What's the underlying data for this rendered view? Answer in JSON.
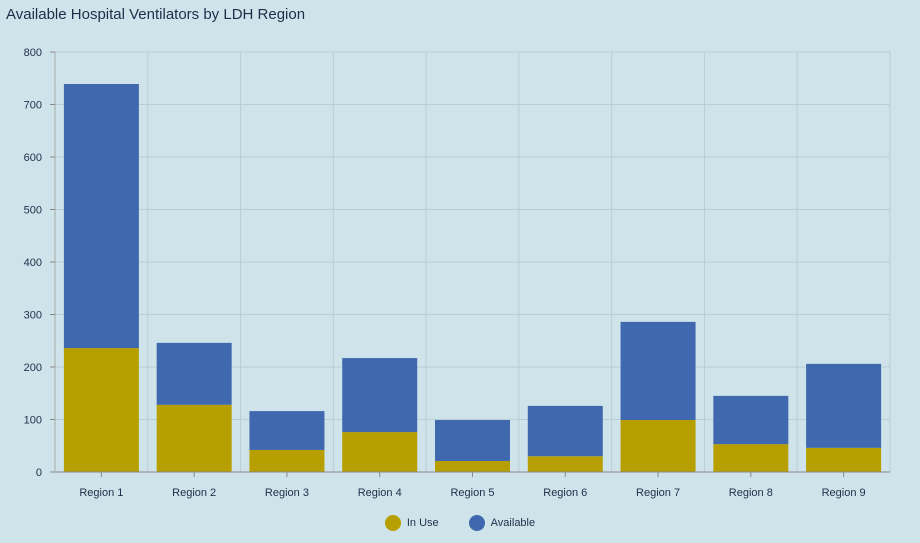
{
  "chart_data": {
    "type": "bar",
    "stacked": true,
    "title": "Available Hospital Ventilators by LDH Region",
    "xlabel": "",
    "ylabel": "",
    "ylim": [
      0,
      800
    ],
    "yticks": [
      0,
      100,
      200,
      300,
      400,
      500,
      600,
      700,
      800
    ],
    "grid": true,
    "legend_position": "bottom",
    "categories": [
      "Region 1",
      "Region 2",
      "Region 3",
      "Region 4",
      "Region 5",
      "Region 6",
      "Region 7",
      "Region 8",
      "Region 9"
    ],
    "series": [
      {
        "name": "In Use",
        "color": "#b89f00",
        "values": [
          236,
          128,
          42,
          76,
          21,
          30,
          99,
          53,
          46
        ]
      },
      {
        "name": "Available",
        "color": "#3f68ae",
        "values": [
          503,
          118,
          74,
          141,
          78,
          96,
          187,
          92,
          160
        ]
      }
    ]
  }
}
